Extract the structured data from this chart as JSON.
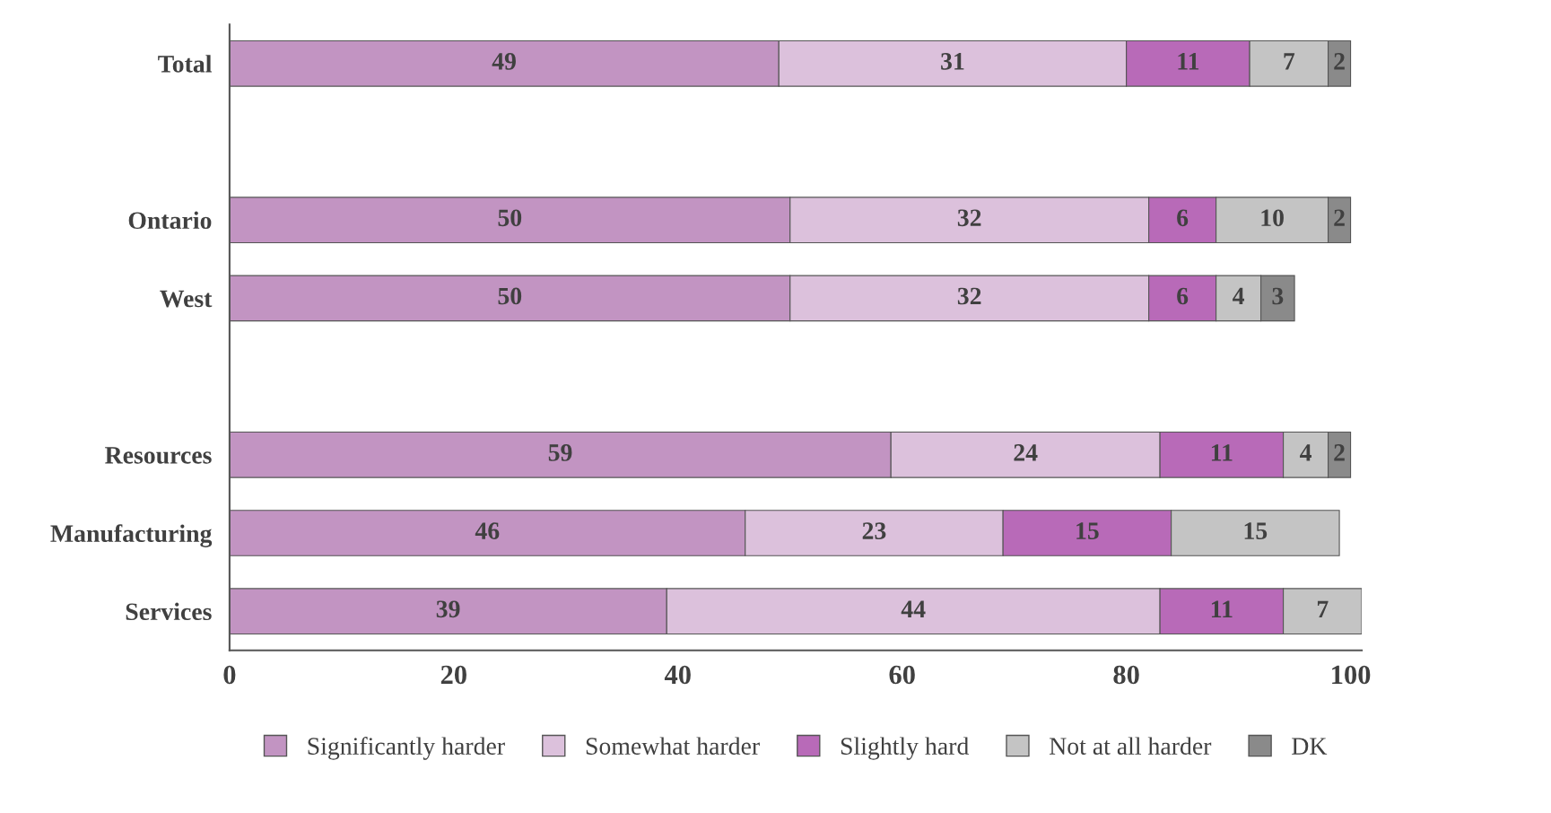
{
  "chart_data": {
    "type": "bar",
    "orientation": "horizontal",
    "stacked": true,
    "data_labels": true,
    "categories": [
      "Total",
      null,
      "Ontario",
      "West",
      null,
      "Resources",
      "Manufacturing",
      "Services"
    ],
    "series": [
      {
        "name": "Significantly harder",
        "color": "#c294c2",
        "values": [
          49,
          null,
          50,
          50,
          null,
          59,
          46,
          39
        ]
      },
      {
        "name": "Somewhat harder",
        "color": "#dcc1dc",
        "values": [
          31,
          null,
          32,
          32,
          null,
          24,
          23,
          44
        ]
      },
      {
        "name": "Slightly hard",
        "color": "#b86ab8",
        "values": [
          11,
          null,
          6,
          6,
          null,
          11,
          15,
          11
        ]
      },
      {
        "name": "Not at all harder",
        "color": "#c4c4c4",
        "values": [
          7,
          null,
          10,
          4,
          null,
          4,
          15,
          7
        ]
      },
      {
        "name": "DK",
        "color": "#8a8a8a",
        "values": [
          2,
          null,
          2,
          3,
          null,
          2,
          null,
          null
        ]
      }
    ],
    "xlim": [
      0,
      101
    ],
    "xticks": [
      0,
      20,
      40,
      60,
      80,
      100
    ],
    "grid": false,
    "legend": "bottom"
  }
}
